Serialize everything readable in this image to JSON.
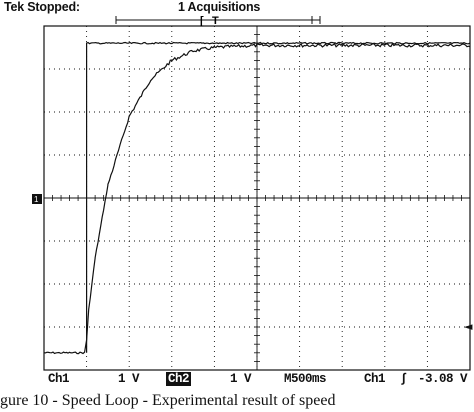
{
  "header": {
    "status": "Tek Stopped:",
    "acquisitions": "1 Acquisitions",
    "trigger_marker": "T"
  },
  "display": {
    "ground_marker_label": "1",
    "trigger_level_marker": "◄"
  },
  "footer": {
    "ch1_label": "Ch1",
    "ch1_scale": "1 V",
    "math_box": "Ch2",
    "math_scale": "1 V",
    "timebase": "M500ms",
    "trigger_source": "Ch1",
    "trigger_slope": "∫",
    "trigger_level": "-3.08 V"
  },
  "caption": "gure 10 - Speed Loop - Experimental result of speed",
  "colors": {
    "trace": "#111111",
    "grid": "#111111",
    "background": "#ffffff"
  },
  "chart_data": {
    "type": "line",
    "title": "",
    "xlabel": "",
    "ylabel": "",
    "x_divisions": 10,
    "y_divisions": 8,
    "x_per_div": "500ms",
    "y_per_div": "1 V",
    "series": [
      {
        "x": [
          0,
          0.95,
          1.0,
          1.05,
          1.2,
          1.5,
          2.0,
          2.5,
          3.0,
          3.5,
          4.0,
          5.0,
          6.0,
          7.0,
          8.0,
          9.0,
          10.0
        ],
        "y": [
          -3.6,
          -3.6,
          -3.3,
          -2.6,
          -1.4,
          0.3,
          1.9,
          2.75,
          3.2,
          3.42,
          3.5,
          3.55,
          3.55,
          3.55,
          3.55,
          3.55,
          3.55
        ]
      },
      {
        "x": [
          1.0,
          1.0,
          10.0
        ],
        "y": [
          -3.6,
          3.6,
          3.6
        ]
      }
    ]
  }
}
